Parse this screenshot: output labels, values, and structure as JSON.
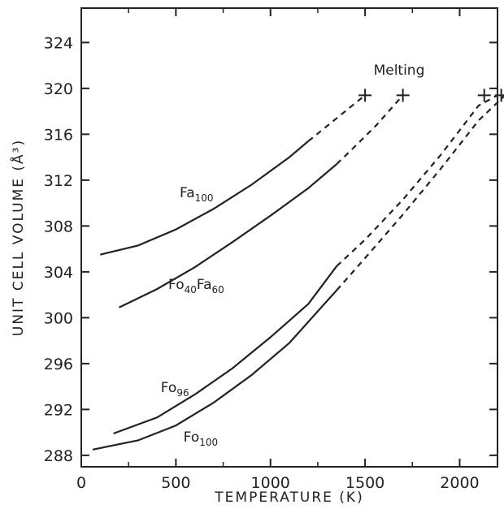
{
  "chart_data": {
    "type": "line",
    "xlabel": "TEMPERATURE (K)",
    "ylabel": "UNIT CELL VOLUME (Å³)",
    "xlim": [
      0,
      2200
    ],
    "ylim": [
      287,
      327
    ],
    "x_ticks": [
      0,
      500,
      1000,
      1500,
      2000
    ],
    "y_ticks": [
      288,
      292,
      296,
      300,
      304,
      308,
      312,
      316,
      320,
      324
    ],
    "grid": false,
    "series": [
      {
        "name": "Fa100",
        "name_main": "Fa",
        "name_sub": "100",
        "solid": [
          [
            100,
            305.5
          ],
          [
            300,
            306.3
          ],
          [
            500,
            307.7
          ],
          [
            700,
            309.5
          ],
          [
            900,
            311.6
          ],
          [
            1100,
            314.0
          ],
          [
            1200,
            315.4
          ]
        ],
        "dashed": [
          [
            1200,
            315.4
          ],
          [
            1320,
            317.0
          ],
          [
            1440,
            318.6
          ],
          [
            1500,
            319.4
          ]
        ],
        "melting": [
          1500,
          319.4
        ],
        "label_at": [
          520,
          310.5
        ]
      },
      {
        "name": "Fo40Fa60",
        "name_main": [
          "Fo",
          "Fa"
        ],
        "name_sub": [
          "40",
          "60"
        ],
        "solid": [
          [
            200,
            300.9
          ],
          [
            400,
            302.5
          ],
          [
            600,
            304.4
          ],
          [
            800,
            306.6
          ],
          [
            1000,
            308.9
          ],
          [
            1200,
            311.3
          ],
          [
            1350,
            313.4
          ]
        ],
        "dashed": [
          [
            1350,
            313.4
          ],
          [
            1450,
            315.0
          ],
          [
            1560,
            316.8
          ],
          [
            1700,
            319.4
          ]
        ],
        "melting": [
          1700,
          319.4
        ],
        "label_at": [
          460,
          302.5
        ]
      },
      {
        "name": "Fo96",
        "name_main": "Fo",
        "name_sub": "96",
        "solid": [
          [
            170,
            289.9
          ],
          [
            400,
            291.3
          ],
          [
            600,
            293.3
          ],
          [
            800,
            295.6
          ],
          [
            1000,
            298.3
          ],
          [
            1200,
            301.2
          ],
          [
            1350,
            304.5
          ]
        ],
        "dashed": [
          [
            1350,
            304.5
          ],
          [
            1500,
            306.8
          ],
          [
            1700,
            310.3
          ],
          [
            1900,
            314.2
          ],
          [
            2100,
            318.5
          ],
          [
            2200,
            319.4
          ]
        ],
        "melting": [
          2130,
          319.4
        ],
        "label_at": [
          420,
          293.5
        ]
      },
      {
        "name": "Fo100",
        "name_main": "Fo",
        "name_sub": "100",
        "solid": [
          [
            60,
            288.5
          ],
          [
            300,
            289.3
          ],
          [
            500,
            290.6
          ],
          [
            700,
            292.6
          ],
          [
            900,
            295.0
          ],
          [
            1100,
            297.8
          ],
          [
            1350,
            302.4
          ]
        ],
        "dashed": [
          [
            1350,
            302.4
          ],
          [
            1500,
            305.2
          ],
          [
            1700,
            309.0
          ],
          [
            1900,
            313.0
          ],
          [
            2100,
            317.2
          ],
          [
            2240,
            319.4
          ]
        ],
        "melting": [
          2220,
          319.4
        ],
        "label_at": [
          540,
          289.2
        ]
      }
    ],
    "annotation": {
      "text": "Melting",
      "at": [
        1680,
        321.2
      ]
    },
    "colors": {
      "line": "#222222",
      "background": "#ffffff"
    }
  }
}
